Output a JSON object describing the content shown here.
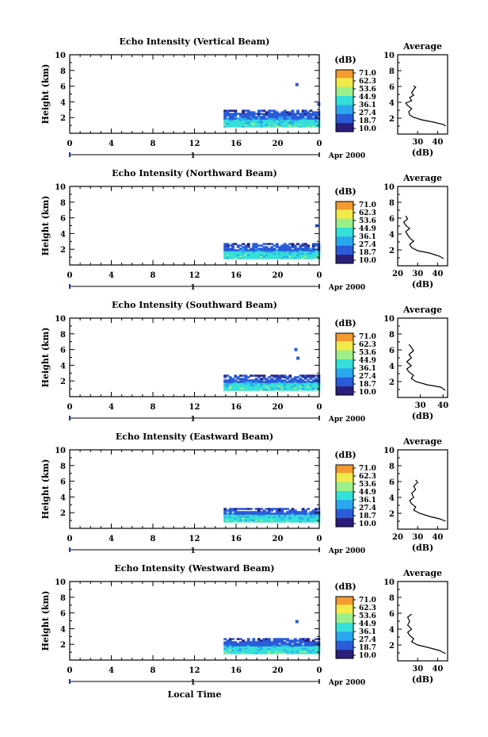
{
  "figure": {
    "xlabel": "Local Time",
    "date_label": "Apr 2000",
    "day_label": "1"
  },
  "chart_data": [
    {
      "type": "heatmap",
      "title": "Echo Intensity (Vertical Beam)",
      "ylabel": "Height (km)",
      "xlim": [
        0,
        24
      ],
      "ylim": [
        0,
        10
      ],
      "xticks": [
        "0",
        "4",
        "8",
        "12",
        "16",
        "20",
        "0"
      ],
      "yticks": [
        "2",
        "4",
        "6",
        "8",
        "10"
      ],
      "colorbar": {
        "unit": "(dB)",
        "ticks": [
          "71.0",
          "62.3",
          "53.6",
          "44.9",
          "36.1",
          "27.4",
          "18.7",
          "10.0"
        ]
      },
      "data_start_hour": 14.8,
      "band": {
        "top_km": 3.0,
        "strong_km": 1.4
      },
      "sparse_points": [
        [
          21.7,
          6.1
        ],
        [
          23.8,
          3.6
        ]
      ],
      "profile": {
        "title": "Average",
        "xlabel": "(dB)",
        "xlim": [
          20,
          45
        ],
        "xticks": [
          "30",
          "40"
        ],
        "ylim": [
          0,
          10
        ],
        "points": [
          [
            44,
            1.0
          ],
          [
            43,
            1.2
          ],
          [
            38,
            1.5
          ],
          [
            32,
            1.8
          ],
          [
            28,
            2.1
          ],
          [
            26,
            2.4
          ],
          [
            25.5,
            2.8
          ],
          [
            27,
            3.2
          ],
          [
            25,
            3.6
          ],
          [
            24,
            3.9
          ],
          [
            27,
            4.2
          ],
          [
            26,
            4.6
          ],
          [
            28,
            4.9
          ],
          [
            27,
            5.2
          ],
          [
            28,
            5.6
          ],
          [
            29,
            5.9
          ],
          [
            28,
            6.1
          ]
        ]
      }
    },
    {
      "type": "heatmap",
      "title": "Echo Intensity (Northward Beam)",
      "ylabel": "Height (km)",
      "xlim": [
        0,
        24
      ],
      "ylim": [
        0,
        10
      ],
      "xticks": [
        "0",
        "4",
        "8",
        "12",
        "16",
        "20",
        "0"
      ],
      "yticks": [
        "2",
        "4",
        "6",
        "8",
        "10"
      ],
      "colorbar": {
        "unit": "(dB)",
        "ticks": [
          "71.0",
          "62.3",
          "53.6",
          "44.9",
          "36.1",
          "27.4",
          "18.7",
          "10.0"
        ]
      },
      "data_start_hour": 14.8,
      "band": {
        "top_km": 2.8,
        "strong_km": 1.3
      },
      "sparse_points": [
        [
          23.6,
          4.9
        ]
      ],
      "profile": {
        "title": "Average",
        "xlabel": "(dB)",
        "xlim": [
          20,
          45
        ],
        "xticks": [
          "20",
          "30",
          "40"
        ],
        "ylim": [
          0,
          10
        ],
        "points": [
          [
            43,
            0.9
          ],
          [
            41,
            1.2
          ],
          [
            36,
            1.6
          ],
          [
            30,
            1.9
          ],
          [
            27,
            2.3
          ],
          [
            26,
            2.7
          ],
          [
            28,
            3.1
          ],
          [
            26,
            3.5
          ],
          [
            25,
            3.9
          ],
          [
            24,
            4.3
          ],
          [
            26,
            4.7
          ],
          [
            24,
            5.1
          ],
          [
            23,
            5.5
          ],
          [
            25,
            5.9
          ],
          [
            24,
            6.3
          ]
        ]
      }
    },
    {
      "type": "heatmap",
      "title": "Echo Intensity (Southward Beam)",
      "ylabel": "Height (km)",
      "xlim": [
        0,
        24
      ],
      "ylim": [
        0,
        10
      ],
      "xticks": [
        "0",
        "4",
        "8",
        "12",
        "16",
        "20",
        "0"
      ],
      "yticks": [
        "2",
        "4",
        "6",
        "8",
        "10"
      ],
      "colorbar": {
        "unit": "(dB)",
        "ticks": [
          "71.0",
          "62.3",
          "53.6",
          "44.9",
          "36.1",
          "27.4",
          "18.7",
          "10.0"
        ]
      },
      "data_start_hour": 14.8,
      "band": {
        "top_km": 2.7,
        "strong_km": 1.3
      },
      "sparse_points": [
        [
          21.6,
          5.9
        ],
        [
          21.8,
          4.8
        ]
      ],
      "profile": {
        "title": "Average",
        "xlabel": "(dB)",
        "xlim": [
          20,
          42
        ],
        "xticks": [
          "30",
          "40"
        ],
        "ylim": [
          0,
          10
        ],
        "points": [
          [
            41,
            0.9
          ],
          [
            39,
            1.3
          ],
          [
            33,
            1.6
          ],
          [
            28,
            2.0
          ],
          [
            26,
            2.4
          ],
          [
            27,
            2.8
          ],
          [
            25,
            3.2
          ],
          [
            24,
            3.6
          ],
          [
            26,
            4.0
          ],
          [
            24,
            4.5
          ],
          [
            26,
            5.0
          ],
          [
            25,
            5.4
          ],
          [
            27,
            5.9
          ],
          [
            26,
            6.3
          ],
          [
            25,
            6.7
          ]
        ]
      }
    },
    {
      "type": "heatmap",
      "title": "Echo Intensity (Eastward Beam)",
      "ylabel": "Height (km)",
      "xlim": [
        0,
        24
      ],
      "ylim": [
        0,
        10
      ],
      "xticks": [
        "0",
        "4",
        "8",
        "12",
        "16",
        "20",
        "0"
      ],
      "yticks": [
        "2",
        "4",
        "6",
        "8",
        "10"
      ],
      "colorbar": {
        "unit": "(dB)",
        "ticks": [
          "71.0",
          "62.3",
          "53.6",
          "44.9",
          "36.1",
          "27.4",
          "18.7",
          "10.0"
        ]
      },
      "data_start_hour": 14.8,
      "band": {
        "top_km": 2.6,
        "strong_km": 1.3
      },
      "sparse_points": [],
      "profile": {
        "title": "Average",
        "xlabel": "(dB)",
        "xlim": [
          20,
          45
        ],
        "xticks": [
          "20",
          "30",
          "40"
        ],
        "ylim": [
          0,
          10
        ],
        "points": [
          [
            44,
            1.0
          ],
          [
            41,
            1.3
          ],
          [
            36,
            1.6
          ],
          [
            31,
            2.0
          ],
          [
            28,
            2.4
          ],
          [
            29,
            2.8
          ],
          [
            27,
            3.2
          ],
          [
            26,
            3.6
          ],
          [
            28,
            4.0
          ],
          [
            27,
            4.5
          ],
          [
            29,
            5.0
          ],
          [
            28,
            5.4
          ],
          [
            30,
            5.9
          ],
          [
            29,
            6.2
          ]
        ]
      }
    },
    {
      "type": "heatmap",
      "title": "Echo Intensity (Westward Beam)",
      "ylabel": "Height (km)",
      "xlim": [
        0,
        24
      ],
      "ylim": [
        0,
        10
      ],
      "xticks": [
        "0",
        "4",
        "8",
        "12",
        "16",
        "20",
        "0"
      ],
      "yticks": [
        "2",
        "4",
        "6",
        "8",
        "10"
      ],
      "colorbar": {
        "unit": "(dB)",
        "ticks": [
          "71.0",
          "62.3",
          "53.6",
          "44.9",
          "36.1",
          "27.4",
          "18.7",
          "10.0"
        ]
      },
      "data_start_hour": 14.8,
      "band": {
        "top_km": 2.8,
        "strong_km": 1.3
      },
      "sparse_points": [
        [
          21.7,
          4.8
        ]
      ],
      "profile": {
        "title": "Average",
        "xlabel": "(dB)",
        "xlim": [
          20,
          45
        ],
        "xticks": [
          "30",
          "40"
        ],
        "ylim": [
          0,
          10
        ],
        "points": [
          [
            44,
            0.9
          ],
          [
            41,
            1.3
          ],
          [
            35,
            1.7
          ],
          [
            30,
            2.0
          ],
          [
            27,
            2.4
          ],
          [
            28,
            2.8
          ],
          [
            26,
            3.2
          ],
          [
            25,
            3.6
          ],
          [
            27,
            4.0
          ],
          [
            25,
            4.5
          ],
          [
            26,
            5.0
          ],
          [
            25,
            5.5
          ],
          [
            27,
            5.9
          ]
        ]
      }
    }
  ]
}
